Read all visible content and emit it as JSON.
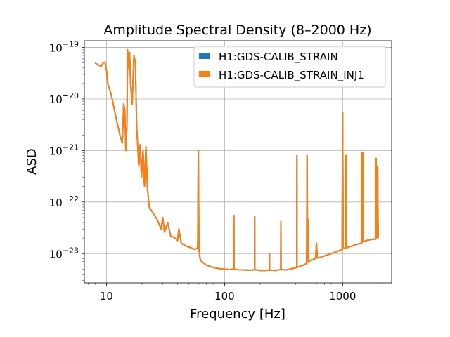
{
  "chart_data": {
    "type": "line",
    "title": "Amplitude Spectral Density (8–2000 Hz)",
    "xlabel": "Frequency [Hz]",
    "ylabel": "ASD",
    "xscale": "log",
    "yscale": "log",
    "xlim": [
      6.5,
      2600
    ],
    "ylim": [
      2.7e-24,
      1.35e-19
    ],
    "grid": true,
    "legend_position": "top-right",
    "x_ticks": [
      {
        "value": 10,
        "label": "10"
      },
      {
        "value": 100,
        "label": "100"
      },
      {
        "value": 1000,
        "label": "1000"
      }
    ],
    "y_ticks": [
      {
        "value": 1e-19,
        "base": "10",
        "exp": "−19"
      },
      {
        "value": 1e-20,
        "base": "10",
        "exp": "−20"
      },
      {
        "value": 1e-21,
        "base": "10",
        "exp": "−21"
      },
      {
        "value": 1e-22,
        "base": "10",
        "exp": "−22"
      },
      {
        "value": 1e-23,
        "base": "10",
        "exp": "−23"
      }
    ],
    "series": [
      {
        "name": "H1:GDS-CALIB_STRAIN",
        "color": "#1f77b4",
        "hidden_behind_next": true
      },
      {
        "name": "H1:GDS-CALIB_STRAIN_INJ1",
        "color": "#ff7f0e"
      }
    ],
    "points": [
      [
        8,
        5e-20
      ],
      [
        8.5,
        4.6e-20
      ],
      [
        9,
        4.3e-20
      ],
      [
        9.4,
        5e-20
      ],
      [
        9.7,
        5.2e-20
      ],
      [
        10,
        3.6e-20
      ],
      [
        10.3,
        1.9e-20
      ],
      [
        11,
        1.2e-20
      ],
      [
        12,
        4.5e-21
      ],
      [
        13,
        2e-21
      ],
      [
        13.6,
        1.4e-21
      ],
      [
        14,
        8e-21
      ],
      [
        14.3,
        6e-21
      ],
      [
        14.6,
        1e-21
      ],
      [
        14.9,
        3e-21
      ],
      [
        15.1,
        9e-20
      ],
      [
        15.4,
        4e-20
      ],
      [
        15.7,
        8e-20
      ],
      [
        16.0,
        2e-20
      ],
      [
        16.5,
        8e-21
      ],
      [
        17.1,
        7e-20
      ],
      [
        17.6,
        5e-20
      ],
      [
        18,
        3e-21
      ],
      [
        18.8,
        5e-22
      ],
      [
        19.3,
        1.3e-21
      ],
      [
        19.8,
        3e-22
      ],
      [
        20.4,
        1e-21
      ],
      [
        21,
        2e-22
      ],
      [
        21.6,
        1.2e-21
      ],
      [
        22.2,
        2e-22
      ],
      [
        23,
        8e-23
      ],
      [
        25,
        6e-23
      ],
      [
        27,
        4.5e-23
      ],
      [
        29,
        3e-23
      ],
      [
        30,
        5e-23
      ],
      [
        31,
        2.6e-23
      ],
      [
        33,
        4e-23
      ],
      [
        35,
        2.2e-23
      ],
      [
        38,
        2e-23
      ],
      [
        40,
        1.8e-23
      ],
      [
        41,
        3e-23
      ],
      [
        43,
        1.6e-23
      ],
      [
        47,
        1.4e-23
      ],
      [
        52,
        1.3e-23
      ],
      [
        56,
        1.2e-23
      ],
      [
        59.3,
        1.3e-23
      ],
      [
        60,
        1e-21
      ],
      [
        60.7,
        1.2e-23
      ],
      [
        62,
        8e-24
      ],
      [
        64,
        7e-24
      ],
      [
        70,
        6e-24
      ],
      [
        80,
        5.4e-24
      ],
      [
        90,
        5.1e-24
      ],
      [
        100,
        5e-24
      ],
      [
        110,
        4.9e-24
      ],
      [
        119.5,
        5e-24
      ],
      [
        120,
        5.5e-23
      ],
      [
        120.5,
        5e-24
      ],
      [
        130,
        4.85e-24
      ],
      [
        150,
        4.8e-24
      ],
      [
        170,
        4.75e-24
      ],
      [
        179.5,
        4.9e-24
      ],
      [
        180,
        5.3e-23
      ],
      [
        180.5,
        4.9e-24
      ],
      [
        200,
        4.7e-24
      ],
      [
        220,
        4.7e-24
      ],
      [
        239.5,
        4.8e-24
      ],
      [
        240,
        1e-23
      ],
      [
        240.5,
        4.8e-24
      ],
      [
        270,
        4.7e-24
      ],
      [
        299,
        4.9e-24
      ],
      [
        300,
        4.2e-23
      ],
      [
        301,
        4.9e-24
      ],
      [
        330,
        4.8e-24
      ],
      [
        360,
        5e-24
      ],
      [
        400,
        5.3e-24
      ],
      [
        409,
        5.4e-24
      ],
      [
        410,
        8e-22
      ],
      [
        411,
        5.4e-24
      ],
      [
        450,
        5.8e-24
      ],
      [
        490,
        6.3e-24
      ],
      [
        496,
        6.5e-24
      ],
      [
        500,
        8e-22
      ],
      [
        505,
        7e-24
      ],
      [
        510,
        4.5e-23
      ],
      [
        515,
        7e-24
      ],
      [
        550,
        7.5e-24
      ],
      [
        590,
        8e-24
      ],
      [
        600,
        1.6e-23
      ],
      [
        610,
        8.2e-24
      ],
      [
        650,
        8.5e-24
      ],
      [
        700,
        9e-24
      ],
      [
        800,
        1e-23
      ],
      [
        900,
        1.1e-23
      ],
      [
        990,
        1.2e-23
      ],
      [
        1000,
        5.5e-21
      ],
      [
        1010,
        1.25e-23
      ],
      [
        1060,
        1.3e-23
      ],
      [
        1070,
        8e-22
      ],
      [
        1080,
        1.3e-23
      ],
      [
        1200,
        1.4e-23
      ],
      [
        1300,
        1.5e-23
      ],
      [
        1450,
        1.6e-23
      ],
      [
        1460,
        9e-22
      ],
      [
        1470,
        1.7e-23
      ],
      [
        1480,
        9e-22
      ],
      [
        1490,
        1.7e-23
      ],
      [
        1600,
        1.8e-23
      ],
      [
        1800,
        1.9e-23
      ],
      [
        1900,
        1.9e-23
      ],
      [
        1920,
        7e-22
      ],
      [
        1940,
        1.95e-23
      ],
      [
        1980,
        5e-22
      ],
      [
        2000,
        2e-23
      ]
    ]
  }
}
